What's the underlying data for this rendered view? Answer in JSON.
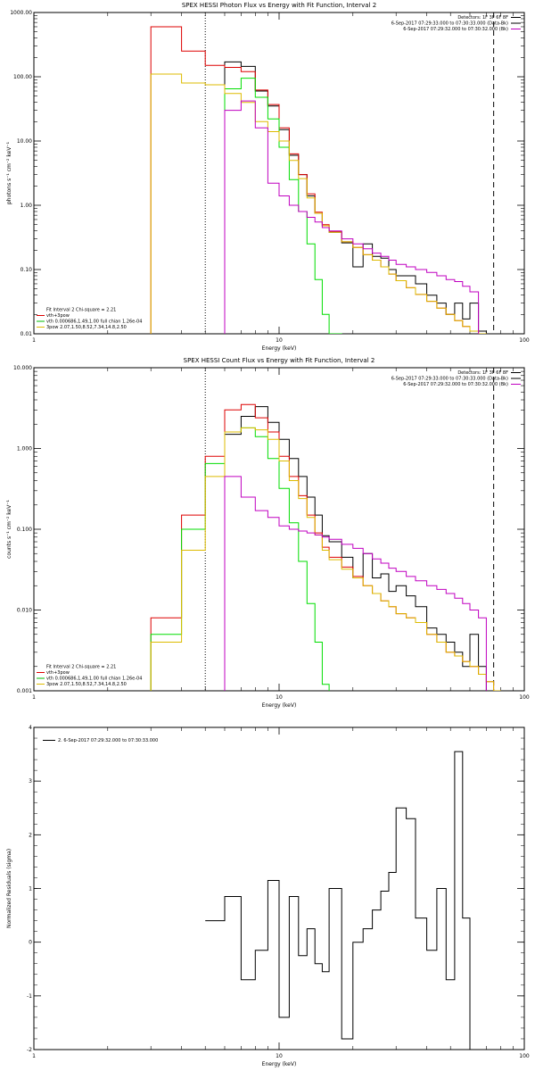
{
  "chart_data": [
    {
      "type": "line",
      "title": "SPEX HESSI Photon Flux vs Energy with Fit Function, Interval 2",
      "xlabel": "Energy (keV)",
      "ylabel": "photons s⁻¹ cm⁻² keV⁻¹",
      "xscale": "log",
      "yscale": "log",
      "xlim": [
        1,
        100
      ],
      "ylim": [
        0.01,
        1000
      ],
      "xticks": [
        {
          "v": 1,
          "l": "1"
        },
        {
          "v": 10,
          "l": "10"
        },
        {
          "v": 100,
          "l": "100"
        }
      ],
      "yticks": [
        {
          "v": 0.01,
          "l": "0.01"
        },
        {
          "v": 0.1,
          "l": "0.10"
        },
        {
          "v": 1,
          "l": "1.00"
        },
        {
          "v": 10,
          "l": "10.00"
        },
        {
          "v": 100,
          "l": "100.00"
        },
        {
          "v": 1000,
          "l": "1000.00"
        }
      ],
      "vlines": [
        {
          "x": 5.0,
          "style": "dotted"
        },
        {
          "x": 75,
          "style": "dashed"
        }
      ],
      "info_lines": [
        {
          "text": "Detectors: 1F 3F 6F 8F",
          "color": "#000000"
        },
        {
          "text": "6-Sep-2017 07:29:33.000 to 07:30:33.000 (Data-Bk)",
          "color": "#000000"
        },
        {
          "text": "6-Sep-2017 07:29:32.000 to 07:30:32.000 (Bk)",
          "color": "#c000c0"
        }
      ],
      "legend_lines": [
        {
          "text": "Fit Interval 2   Chi-square = 2.21",
          "color": "#000000"
        },
        {
          "text": "vth+3pow",
          "color": "#dd0000"
        },
        {
          "text": "vth 0.000686,1.49,1.00  full chian 1.26e-04",
          "color": "#00bb00"
        },
        {
          "text": "3pow 2.07,1.50,8.52,7.34,14.8,2.50",
          "color": "#ddbb00"
        }
      ],
      "edges": [
        3,
        4,
        5,
        6,
        7,
        8,
        9,
        10,
        11,
        12,
        13,
        14,
        15,
        16,
        18,
        20,
        22,
        24,
        26,
        28,
        30,
        33,
        36,
        40,
        44,
        48,
        52,
        56,
        60,
        65,
        70,
        75
      ],
      "series": [
        {
          "name": "Data-Bk",
          "color": "#000000",
          "values": [
            null,
            null,
            null,
            170,
            145,
            60,
            35,
            15,
            6,
            3,
            1.4,
            0.75,
            0.48,
            0.38,
            0.26,
            0.11,
            0.25,
            0.16,
            0.15,
            0.1,
            0.08,
            0.08,
            0.06,
            0.04,
            0.03,
            0.02,
            0.03,
            0.017,
            0.03,
            0.011,
            null
          ]
        },
        {
          "name": "vth+3pow",
          "color": "#dd0000",
          "values": [
            600,
            250,
            150,
            140,
            120,
            62,
            37,
            16,
            6.3,
            3.0,
            1.5,
            0.78,
            0.5,
            0.39,
            0.27,
            0.22,
            0.17,
            0.14,
            0.11,
            0.085,
            0.067,
            0.052,
            0.041,
            0.032,
            0.025,
            0.02,
            0.016,
            0.013,
            0.011,
            0.009,
            null
          ]
        },
        {
          "name": "vth",
          "color": "#00dd00",
          "values": [
            null,
            null,
            null,
            65,
            95,
            48,
            22,
            8,
            2.5,
            0.8,
            0.25,
            0.07,
            0.02,
            0.007,
            null,
            null,
            null,
            null,
            null,
            null,
            null,
            null,
            null,
            null,
            null,
            null,
            null,
            null,
            null,
            null,
            null
          ]
        },
        {
          "name": "3pow",
          "color": "#ddbb00",
          "values": [
            110,
            80,
            75,
            55,
            40,
            20,
            14,
            10,
            5,
            2.6,
            1.3,
            0.75,
            0.48,
            0.38,
            0.27,
            0.22,
            0.17,
            0.14,
            0.11,
            0.085,
            0.067,
            0.052,
            0.041,
            0.032,
            0.025,
            0.02,
            0.016,
            0.013,
            0.011,
            0.009,
            null
          ]
        },
        {
          "name": "Bk",
          "color": "#c000c0",
          "values": [
            null,
            null,
            null,
            30,
            42,
            16,
            2.2,
            1.4,
            1.0,
            0.8,
            0.65,
            0.55,
            0.45,
            0.4,
            0.3,
            0.25,
            0.21,
            0.18,
            0.16,
            0.14,
            0.12,
            0.11,
            0.1,
            0.09,
            0.08,
            0.07,
            0.065,
            0.055,
            0.045,
            null,
            null
          ]
        }
      ]
    },
    {
      "type": "line",
      "title": "SPEX HESSI Count Flux vs Energy with Fit Function, Interval 2",
      "xlabel": "Energy (keV)",
      "ylabel": "counts s⁻¹ cm⁻² keV⁻¹",
      "xscale": "log",
      "yscale": "log",
      "xlim": [
        1,
        100
      ],
      "ylim": [
        0.001,
        10
      ],
      "xticks": [
        {
          "v": 1,
          "l": "1"
        },
        {
          "v": 10,
          "l": "10"
        },
        {
          "v": 100,
          "l": "100"
        }
      ],
      "yticks": [
        {
          "v": 0.001,
          "l": "0.001"
        },
        {
          "v": 0.01,
          "l": "0.010"
        },
        {
          "v": 0.1,
          "l": "0.100"
        },
        {
          "v": 1,
          "l": "1.000"
        },
        {
          "v": 10,
          "l": "10.000"
        }
      ],
      "vlines": [
        {
          "x": 5.0,
          "style": "dotted"
        },
        {
          "x": 75,
          "style": "dashed"
        }
      ],
      "info_lines": [
        {
          "text": "Detectors: 1F 3F 6F 8F",
          "color": "#000000"
        },
        {
          "text": "6-Sep-2017 07:29:33.000 to 07:30:33.000 (Data-Bk)",
          "color": "#000000"
        },
        {
          "text": "6-Sep-2017 07:29:32.000 to 07:30:32.000 (Bk)",
          "color": "#c000c0"
        }
      ],
      "legend_lines": [
        {
          "text": "Fit Interval 2   Chi-square = 2.21",
          "color": "#000000"
        },
        {
          "text": "vth+3pow",
          "color": "#dd0000"
        },
        {
          "text": "vth 0.000686,1.49,1.00  full chian 1.26e-04",
          "color": "#00bb00"
        },
        {
          "text": "3pow 2.07,1.50,8.52,7.34,14.8,2.50",
          "color": "#ddbb00"
        }
      ],
      "edges": [
        3,
        4,
        5,
        6,
        7,
        8,
        9,
        10,
        11,
        12,
        13,
        14,
        15,
        16,
        18,
        20,
        22,
        24,
        26,
        28,
        30,
        33,
        36,
        40,
        44,
        48,
        52,
        56,
        60,
        65,
        70,
        75,
        80,
        90
      ],
      "series": [
        {
          "name": "Data-Bk",
          "color": "#000000",
          "values": [
            null,
            null,
            null,
            1.5,
            2.5,
            3.3,
            2.1,
            1.3,
            0.75,
            0.45,
            0.25,
            0.15,
            0.083,
            0.07,
            0.045,
            0.025,
            0.05,
            0.025,
            0.028,
            0.017,
            0.02,
            0.015,
            0.011,
            0.006,
            0.005,
            0.004,
            0.003,
            0.002,
            0.005,
            0.002,
            null,
            null,
            null
          ]
        },
        {
          "name": "vth+3pow",
          "color": "#dd0000",
          "values": [
            0.008,
            0.15,
            0.8,
            3.0,
            3.5,
            2.4,
            1.6,
            0.8,
            0.45,
            0.26,
            0.15,
            0.09,
            0.06,
            0.045,
            0.034,
            0.026,
            0.02,
            0.016,
            0.013,
            0.011,
            0.009,
            0.008,
            0.007,
            0.005,
            0.004,
            0.003,
            0.0027,
            0.0023,
            0.002,
            0.0016,
            0.0013,
            0.001,
            null
          ]
        },
        {
          "name": "vth",
          "color": "#00dd00",
          "values": [
            0.005,
            0.1,
            0.65,
            1.6,
            1.8,
            1.4,
            0.75,
            0.32,
            0.12,
            0.04,
            0.012,
            0.004,
            0.0012,
            null,
            null,
            null,
            null,
            null,
            null,
            null,
            null,
            null,
            null,
            null,
            null,
            null,
            null,
            null,
            null,
            null,
            null,
            null,
            null
          ]
        },
        {
          "name": "3pow",
          "color": "#ddbb00",
          "values": [
            0.004,
            0.055,
            0.45,
            1.6,
            1.8,
            1.7,
            1.3,
            0.7,
            0.4,
            0.24,
            0.14,
            0.085,
            0.055,
            0.042,
            0.032,
            0.025,
            0.02,
            0.016,
            0.013,
            0.011,
            0.009,
            0.008,
            0.007,
            0.005,
            0.004,
            0.003,
            0.0027,
            0.0023,
            0.002,
            0.0016,
            0.0013,
            0.001,
            null
          ]
        },
        {
          "name": "Bk",
          "color": "#c000c0",
          "values": [
            null,
            null,
            null,
            0.45,
            0.25,
            0.17,
            0.14,
            0.11,
            0.1,
            0.095,
            0.09,
            0.085,
            0.08,
            0.075,
            0.065,
            0.058,
            0.05,
            0.043,
            0.038,
            0.033,
            0.03,
            0.026,
            0.023,
            0.02,
            0.018,
            0.016,
            0.014,
            0.012,
            0.01,
            0.008,
            null,
            null,
            null
          ]
        }
      ]
    },
    {
      "type": "line",
      "title": "",
      "xlabel": "Energy (keV)",
      "ylabel": "Normalized Residuals (sigma)",
      "xscale": "log",
      "yscale": "linear",
      "xlim": [
        1,
        100
      ],
      "ylim": [
        -2,
        4
      ],
      "xticks": [
        {
          "v": 1,
          "l": "1"
        },
        {
          "v": 10,
          "l": "10"
        },
        {
          "v": 100,
          "l": "100"
        }
      ],
      "yticks": [
        {
          "v": -2,
          "l": "-2"
        },
        {
          "v": -1,
          "l": "-1"
        },
        {
          "v": 0,
          "l": "0"
        },
        {
          "v": 1,
          "l": "1"
        },
        {
          "v": 2,
          "l": "2"
        },
        {
          "v": 3,
          "l": "3"
        },
        {
          "v": 4,
          "l": "4"
        }
      ],
      "vlines": [],
      "info_lines": [],
      "legend_lines": [
        {
          "text": "2.  6-Sep-2017 07:29:32.000 to 07:30:33.000",
          "color": "#000000"
        }
      ],
      "edges": [
        5,
        6,
        7,
        8,
        9,
        10,
        11,
        12,
        13,
        14,
        15,
        16,
        18,
        20,
        22,
        24,
        26,
        28,
        30,
        33,
        36,
        40,
        44,
        48,
        52,
        56,
        60,
        65,
        70,
        75
      ],
      "series": [
        {
          "name": "2.  6-Sep-2017 07:29:32.000 to 07:30:33.000",
          "color": "#000000",
          "values": [
            0.4,
            0.85,
            -0.7,
            -0.15,
            1.15,
            -1.4,
            0.85,
            -0.25,
            0.25,
            -0.4,
            -0.55,
            1.0,
            -1.8,
            0.0,
            0.25,
            0.6,
            0.95,
            1.3,
            2.5,
            2.3,
            0.45,
            -0.15,
            1.0,
            -0.7,
            3.55,
            0.45,
            null,
            null,
            null
          ]
        }
      ]
    }
  ]
}
